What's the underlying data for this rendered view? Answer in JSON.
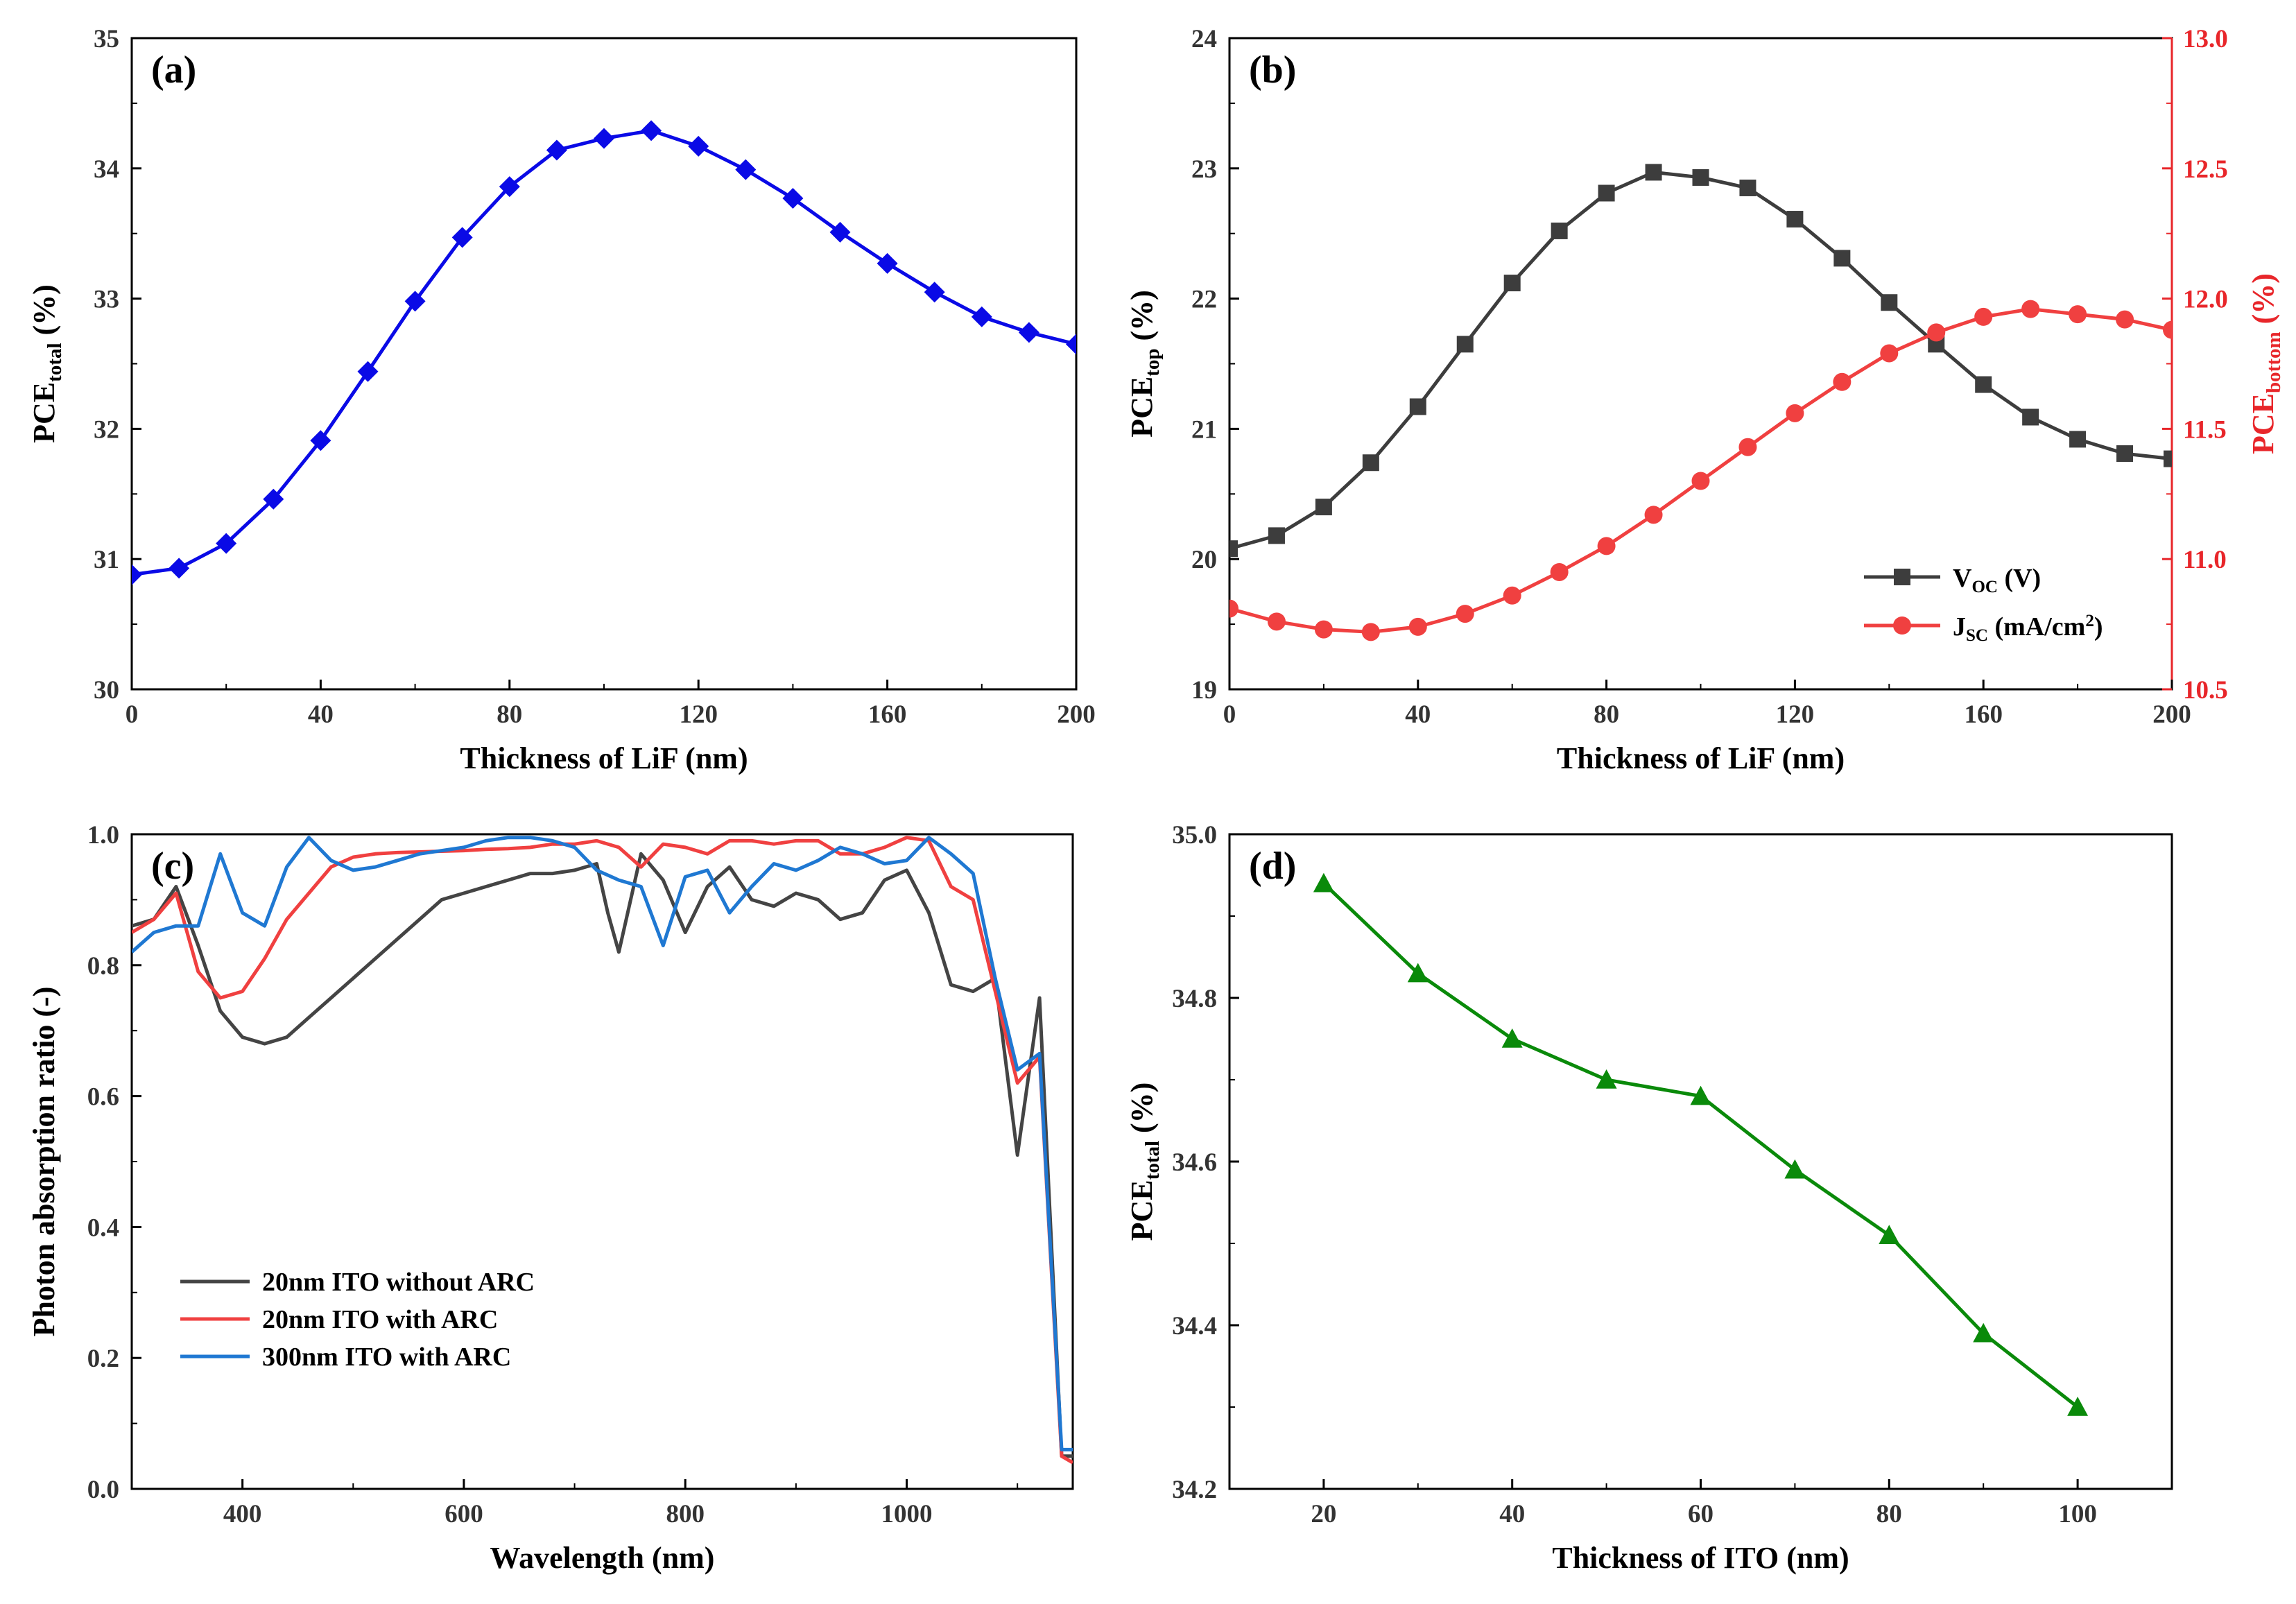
{
  "chart_data": [
    {
      "panel": "(a)",
      "type": "line",
      "xlabel": "Thickness of LiF (nm)",
      "ylabel": {
        "main": "PCE",
        "sub": "total",
        "tail": " (%)"
      },
      "xlim": [
        0,
        200
      ],
      "ylim": [
        30,
        35
      ],
      "xticks": [
        "0",
        "40",
        "80",
        "120",
        "160",
        "200"
      ],
      "yticks": [
        "30",
        "31",
        "32",
        "33",
        "34",
        "35"
      ],
      "series": [
        {
          "name": "PCE_total",
          "color": "#0a0ae6",
          "marker": "diamond",
          "x": [
            0,
            10,
            20,
            30,
            40,
            50,
            60,
            70,
            80,
            90,
            100,
            110,
            120,
            130,
            140,
            150,
            160,
            170,
            180,
            190,
            200
          ],
          "values": [
            30.88,
            30.93,
            31.12,
            31.46,
            31.91,
            32.44,
            32.98,
            33.47,
            33.86,
            34.14,
            34.23,
            34.29,
            34.17,
            33.99,
            33.77,
            33.51,
            33.27,
            33.05,
            32.86,
            32.74,
            32.65
          ]
        }
      ]
    },
    {
      "panel": "(b)",
      "type": "line",
      "xlabel": "Thickness of LiF (nm)",
      "ylabel": {
        "main": "PCE",
        "sub": "top",
        "tail": " (%)"
      },
      "ylabel_right": {
        "main": "PCE",
        "sub": "bottom",
        "tail": " (%)"
      },
      "xlim": [
        0,
        200
      ],
      "ylim": [
        19,
        24
      ],
      "ylim_right": [
        10.5,
        13.0
      ],
      "xticks": [
        "0",
        "40",
        "80",
        "120",
        "160",
        "200"
      ],
      "yticks": [
        "19",
        "20",
        "21",
        "22",
        "23",
        "24"
      ],
      "yticks_right": [
        "10.5",
        "11.0",
        "11.5",
        "12.0",
        "12.5",
        "13.0"
      ],
      "legend": [
        {
          "main": "V",
          "sub": "OC",
          "tail": " (V)"
        },
        {
          "main": "J",
          "sub": "SC",
          "tail": " (mA/cm",
          "sup": "2",
          "tail2": ")"
        }
      ],
      "series": [
        {
          "name": "VOC (V)",
          "axis": "left",
          "color": "#3d3d3d",
          "marker": "square",
          "x": [
            0,
            10,
            20,
            30,
            40,
            50,
            60,
            70,
            80,
            90,
            100,
            110,
            120,
            130,
            140,
            150,
            160,
            170,
            180,
            190,
            200
          ],
          "values": [
            20.08,
            20.18,
            20.4,
            20.74,
            21.17,
            21.65,
            22.12,
            22.52,
            22.81,
            22.97,
            22.93,
            22.85,
            22.61,
            22.31,
            21.97,
            21.65,
            21.34,
            21.09,
            20.92,
            20.81,
            20.77
          ]
        },
        {
          "name": "JSC (mA/cm2)",
          "axis": "right",
          "color": "#f04040",
          "marker": "circle",
          "x": [
            0,
            10,
            20,
            30,
            40,
            50,
            60,
            70,
            80,
            90,
            100,
            110,
            120,
            130,
            140,
            150,
            160,
            170,
            180,
            190,
            200
          ],
          "values": [
            10.81,
            10.76,
            10.73,
            10.72,
            10.74,
            10.79,
            10.86,
            10.95,
            11.05,
            11.17,
            11.3,
            11.43,
            11.56,
            11.68,
            11.79,
            11.87,
            11.93,
            11.96,
            11.94,
            11.92,
            11.88
          ]
        }
      ]
    },
    {
      "panel": "(c)",
      "type": "line",
      "xlabel": "Wavelength (nm)",
      "ylabel": {
        "main": "Photon absorption ratio (-)",
        "sub": "",
        "tail": ""
      },
      "xlim": [
        300,
        1150
      ],
      "ylim": [
        0.0,
        1.0
      ],
      "xticks": [
        "400",
        "600",
        "800",
        "1000"
      ],
      "xtick_values": [
        400,
        600,
        800,
        1000
      ],
      "yticks": [
        "0.0",
        "0.2",
        "0.4",
        "0.6",
        "0.8",
        "1.0"
      ],
      "legend": [
        {
          "main": "20nm ITO without ARC"
        },
        {
          "main": "20nm ITO with ARC"
        },
        {
          "main": "300nm ITO with ARC"
        }
      ],
      "series": [
        {
          "name": "20nm ITO without ARC",
          "color": "#444444",
          "x": [
            300,
            320,
            340,
            360,
            380,
            400,
            420,
            440,
            460,
            480,
            500,
            520,
            540,
            560,
            580,
            600,
            620,
            640,
            660,
            680,
            700,
            720,
            730,
            740,
            760,
            780,
            800,
            820,
            840,
            860,
            880,
            900,
            920,
            940,
            960,
            980,
            1000,
            1020,
            1040,
            1060,
            1080,
            1100,
            1120,
            1140,
            1150
          ],
          "values": [
            0.86,
            0.87,
            0.92,
            0.83,
            0.73,
            0.69,
            0.68,
            0.69,
            0.72,
            0.75,
            0.78,
            0.81,
            0.84,
            0.87,
            0.9,
            0.91,
            0.92,
            0.93,
            0.94,
            0.94,
            0.945,
            0.955,
            0.88,
            0.82,
            0.97,
            0.93,
            0.85,
            0.92,
            0.95,
            0.9,
            0.89,
            0.91,
            0.9,
            0.87,
            0.88,
            0.93,
            0.945,
            0.88,
            0.77,
            0.76,
            0.78,
            0.51,
            0.75,
            0.05,
            0.05
          ]
        },
        {
          "name": "20nm ITO with ARC",
          "color": "#f04040",
          "x": [
            300,
            320,
            340,
            360,
            380,
            400,
            420,
            440,
            460,
            480,
            500,
            520,
            540,
            560,
            580,
            600,
            620,
            640,
            660,
            680,
            700,
            720,
            740,
            760,
            780,
            800,
            820,
            840,
            860,
            880,
            900,
            920,
            940,
            960,
            980,
            1000,
            1020,
            1040,
            1060,
            1080,
            1100,
            1120,
            1140,
            1150
          ],
          "values": [
            0.85,
            0.87,
            0.91,
            0.79,
            0.75,
            0.76,
            0.81,
            0.87,
            0.91,
            0.95,
            0.965,
            0.97,
            0.972,
            0.973,
            0.974,
            0.975,
            0.977,
            0.978,
            0.98,
            0.985,
            0.985,
            0.99,
            0.98,
            0.95,
            0.985,
            0.98,
            0.97,
            0.99,
            0.99,
            0.985,
            0.99,
            0.99,
            0.97,
            0.97,
            0.98,
            0.995,
            0.99,
            0.92,
            0.9,
            0.76,
            0.62,
            0.66,
            0.05,
            0.04
          ]
        },
        {
          "name": "300nm ITO with ARC",
          "color": "#1f78d2",
          "x": [
            300,
            320,
            340,
            360,
            380,
            400,
            420,
            440,
            460,
            480,
            500,
            520,
            540,
            560,
            580,
            600,
            620,
            640,
            660,
            680,
            700,
            720,
            740,
            760,
            780,
            800,
            820,
            840,
            860,
            880,
            900,
            920,
            940,
            960,
            980,
            1000,
            1020,
            1040,
            1060,
            1080,
            1100,
            1120,
            1140,
            1150
          ],
          "values": [
            0.82,
            0.85,
            0.86,
            0.86,
            0.97,
            0.88,
            0.86,
            0.95,
            0.995,
            0.96,
            0.945,
            0.95,
            0.96,
            0.97,
            0.975,
            0.98,
            0.99,
            0.995,
            0.995,
            0.99,
            0.98,
            0.945,
            0.93,
            0.92,
            0.83,
            0.935,
            0.945,
            0.88,
            0.92,
            0.955,
            0.945,
            0.96,
            0.98,
            0.97,
            0.955,
            0.96,
            0.995,
            0.97,
            0.94,
            0.78,
            0.64,
            0.665,
            0.06,
            0.06
          ]
        }
      ]
    },
    {
      "panel": "(d)",
      "type": "line",
      "xlabel": "Thickness of  ITO (nm)",
      "ylabel": {
        "main": "PCE",
        "sub": "total",
        "tail": " (%)"
      },
      "xlim": [
        10,
        110
      ],
      "ylim": [
        34.2,
        35.0
      ],
      "xticks": [
        "20",
        "40",
        "60",
        "80",
        "100"
      ],
      "xtick_values": [
        20,
        40,
        60,
        80,
        100
      ],
      "yticks": [
        "34.2",
        "34.4",
        "34.6",
        "34.8",
        "35.0"
      ],
      "series": [
        {
          "name": "PCE_total",
          "color": "#0a8a0a",
          "marker": "triangle",
          "x": [
            20,
            30,
            40,
            50,
            60,
            70,
            80,
            90,
            100
          ],
          "values": [
            34.94,
            34.83,
            34.75,
            34.7,
            34.68,
            34.59,
            34.51,
            34.39,
            34.3
          ]
        }
      ]
    }
  ]
}
